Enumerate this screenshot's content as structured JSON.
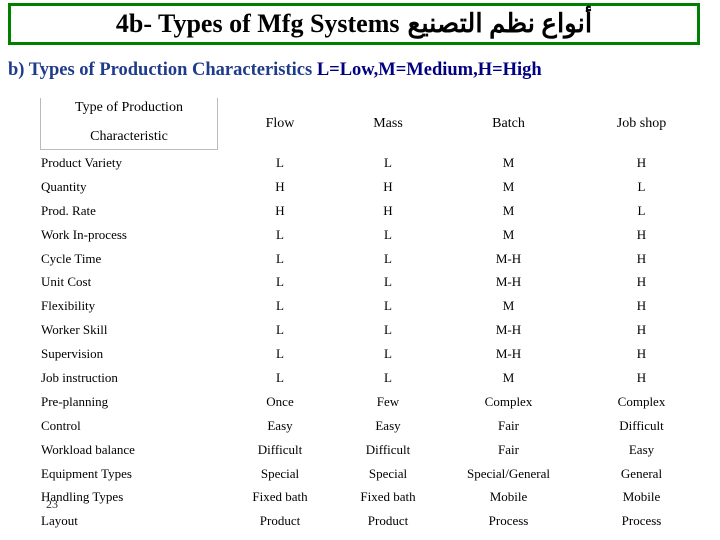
{
  "title": {
    "main": "4b- Types of Mfg Systems",
    "arabic": "أنواع نظم التصنيع"
  },
  "subtitle": {
    "text": "b) Types of Production Characteristics",
    "legend": "L=Low,M=Medium,H=High"
  },
  "slide_number": "23",
  "table": {
    "header": {
      "corner_line1": "Type of Production",
      "corner_line2": "Characteristic",
      "columns": [
        "Flow",
        "Mass",
        "Batch",
        "Job shop"
      ]
    },
    "rows": [
      {
        "label": "Product Variety",
        "cells": [
          "L",
          "L",
          "M",
          "H"
        ]
      },
      {
        "label": "Quantity",
        "cells": [
          "H",
          "H",
          "M",
          "L"
        ]
      },
      {
        "label": "Prod. Rate",
        "cells": [
          "H",
          "H",
          "M",
          "L"
        ]
      },
      {
        "label": "Work In-process",
        "cells": [
          "L",
          "L",
          "M",
          "H"
        ]
      },
      {
        "label": "Cycle Time",
        "cells": [
          "L",
          "L",
          "M-H",
          "H"
        ]
      },
      {
        "label": "Unit Cost",
        "cells": [
          "L",
          "L",
          "M-H",
          "H"
        ]
      },
      {
        "label": "Flexibility",
        "cells": [
          "L",
          "L",
          "M",
          "H"
        ]
      },
      {
        "label": "Worker Skill",
        "cells": [
          "L",
          "L",
          "M-H",
          "H"
        ]
      },
      {
        "label": "Supervision",
        "cells": [
          "L",
          "L",
          "M-H",
          "H"
        ]
      },
      {
        "label": "Job instruction",
        "cells": [
          "L",
          "L",
          "M",
          "H"
        ]
      },
      {
        "label": "Pre-planning",
        "cells": [
          "Once",
          "Few",
          "Complex",
          "Complex"
        ]
      },
      {
        "label": "Control",
        "cells": [
          "Easy",
          "Easy",
          "Fair",
          "Difficult"
        ]
      },
      {
        "label": "Workload balance",
        "cells": [
          "Difficult",
          "Difficult",
          "Fair",
          "Easy"
        ]
      },
      {
        "label": "Equipment Types",
        "cells": [
          "Special",
          "Special",
          "Special/General",
          "General"
        ]
      },
      {
        "label": "Handling Types",
        "cells": [
          "Fixed bath",
          "Fixed bath",
          "Mobile",
          "Mobile"
        ]
      },
      {
        "label": "Layout",
        "cells": [
          "Product",
          "Product",
          "Process",
          "Process"
        ]
      }
    ]
  }
}
